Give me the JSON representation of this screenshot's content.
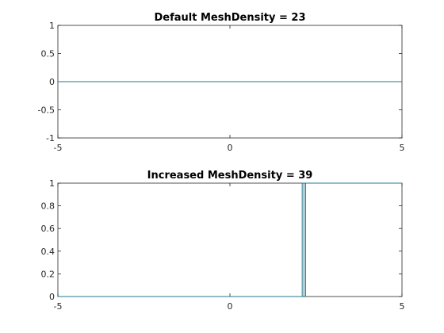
{
  "chart_data": [
    {
      "type": "line",
      "title": "Default MeshDensity = 23",
      "xlabel": "",
      "ylabel": "",
      "xlim": [
        -5,
        5
      ],
      "ylim": [
        -1,
        1
      ],
      "xticks": [
        -5,
        0,
        5
      ],
      "xtick_labels": [
        "-5",
        "0",
        "5"
      ],
      "yticks": [
        -1,
        -0.5,
        0,
        0.5,
        1
      ],
      "ytick_labels": [
        "-1",
        "-0.5",
        "0",
        "0.5",
        "1"
      ],
      "grid": false,
      "color": "#1f7a8c",
      "series": [
        {
          "x": [
            -5,
            5
          ],
          "y": [
            0,
            0
          ]
        }
      ]
    },
    {
      "type": "line",
      "title": "Increased MeshDensity = 39",
      "xlabel": "",
      "ylabel": "",
      "xlim": [
        -5,
        5
      ],
      "ylim": [
        0,
        1
      ],
      "xticks": [
        -5,
        0,
        5
      ],
      "xtick_labels": [
        "-5",
        "0",
        "5"
      ],
      "yticks": [
        0,
        0.2,
        0.4,
        0.6,
        0.8,
        1
      ],
      "ytick_labels": [
        "0",
        "0.2",
        "0.4",
        "0.6",
        "0.8",
        "1"
      ],
      "grid": false,
      "color": "#1f7a8c",
      "series": [
        {
          "x": [
            -5,
            2.1,
            2.1,
            2.15,
            2.15,
            2.2,
            2.2,
            5
          ],
          "y": [
            0,
            0,
            1,
            1,
            0,
            0,
            1,
            1
          ]
        }
      ]
    }
  ]
}
